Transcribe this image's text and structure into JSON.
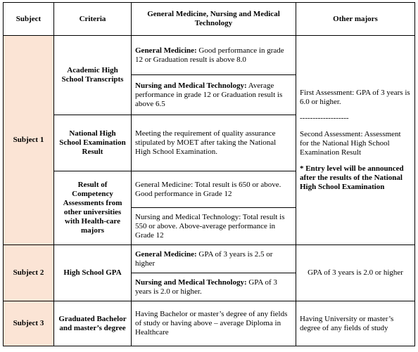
{
  "table": {
    "header": [
      "Subject",
      "Criteria",
      "General Medicine, Nursing and Medical Technology",
      "Other majors"
    ],
    "subjects": [
      {
        "subject": "Subject 1",
        "other": [
          "First Assessment: GPA of 3 years is 6.0 or higher.",
          "-------------------",
          "Second Assessment: Assessment for the National High School Examination Result",
          "* Entry level will be announced after the results of the National High School Examination"
        ],
        "criteria": [
          {
            "name": "Academic High School Transcripts",
            "items": [
              {
                "label": "General Medicine:",
                "text": "Good performance in grade 12 or Graduation result is above 8.0"
              },
              {
                "label": "Nursing and Medical Technology:",
                "text": "Average performance in grade 12 or Graduation result is above 6.5"
              }
            ]
          },
          {
            "name": "National High School Examination Result",
            "items": [
              {
                "text": "Meeting the requirement of quality assurance stipulated by MOET after taking the National High School Examination."
              }
            ]
          },
          {
            "name": "Result of Competency Assessments from other universities with Health-care majors",
            "items": [
              {
                "text": "General Medicine: Total result is 650 or above. Good performance in Grade 12"
              },
              {
                "text": "Nursing and Medical Technology: Total result is 550 or above. Above-average performance in Grade 12"
              }
            ]
          }
        ]
      },
      {
        "subject": "Subject 2",
        "other": [
          "GPA of 3 years is 2.0 or higher"
        ],
        "criteria": [
          {
            "name": "High School GPA",
            "items": [
              {
                "label": "General Medicine:",
                "text": "GPA of 3 years is 2.5 or higher"
              },
              {
                "label": "Nursing and Medical Technology:",
                "text": "GPA of 3 years is 2.0 or higher."
              }
            ]
          }
        ]
      },
      {
        "subject": "Subject 3",
        "other": [
          "Having University or master’s degree of any fields of study"
        ],
        "criteria": [
          {
            "name": "Graduated Bachelor and master’s degree",
            "items": [
              {
                "text": "Having Bachelor or master’s degree of any fields of study or having above – average Diploma in Healthcare"
              }
            ]
          }
        ]
      }
    ]
  }
}
